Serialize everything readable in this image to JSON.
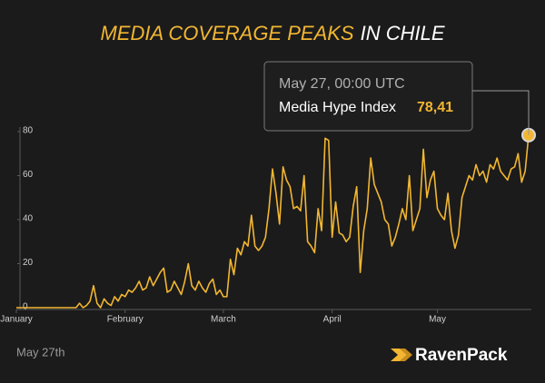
{
  "chart_data": {
    "type": "line",
    "title": {
      "highlight": "MEDIA COVERAGE PEAKS",
      "rest": "IN CHILE"
    },
    "color": "#f2b632",
    "categories": [
      "January",
      null,
      null,
      null,
      null,
      null,
      null,
      null,
      null,
      null,
      null,
      null,
      null,
      null,
      null,
      null,
      null,
      null,
      null,
      null,
      null,
      null,
      null,
      null,
      null,
      null,
      null,
      null,
      null,
      null,
      null,
      "February",
      null,
      null,
      null,
      null,
      null,
      null,
      null,
      null,
      null,
      null,
      null,
      null,
      null,
      null,
      null,
      null,
      null,
      null,
      null,
      null,
      null,
      null,
      null,
      null,
      null,
      null,
      null,
      "March",
      null,
      null,
      null,
      null,
      null,
      null,
      null,
      null,
      null,
      null,
      null,
      null,
      null,
      null,
      null,
      null,
      null,
      null,
      null,
      null,
      null,
      null,
      null,
      null,
      null,
      null,
      null,
      null,
      null,
      null,
      "April",
      null,
      null,
      null,
      null,
      null,
      null,
      null,
      null,
      null,
      null,
      null,
      null,
      null,
      null,
      null,
      null,
      null,
      null,
      null,
      null,
      null,
      null,
      null,
      null,
      null,
      null,
      null,
      null,
      null,
      "May",
      null,
      null,
      null,
      null,
      null,
      null,
      null,
      null,
      null,
      null,
      null,
      null,
      null,
      null,
      null,
      null,
      null,
      null,
      null,
      null,
      null,
      null,
      null,
      null,
      null,
      null
    ],
    "values": [
      0,
      0,
      0,
      0,
      0,
      0,
      0,
      0,
      0,
      0,
      0,
      0,
      0,
      0,
      0,
      0,
      0,
      0,
      2,
      0,
      1,
      3,
      10,
      2,
      0,
      4,
      2,
      1,
      5,
      3,
      6,
      5,
      8,
      7,
      9,
      12,
      8,
      9,
      14,
      10,
      13,
      16,
      18,
      7,
      8,
      12,
      9,
      6,
      12,
      20,
      10,
      8,
      12,
      9,
      7,
      11,
      13,
      6,
      8,
      5,
      5,
      22,
      15,
      27,
      24,
      30,
      28,
      42,
      28,
      26,
      28,
      32,
      45,
      63,
      52,
      38,
      64,
      58,
      55,
      45,
      46,
      44,
      60,
      30,
      28,
      25,
      45,
      35,
      77,
      76,
      32,
      48,
      34,
      33,
      30,
      32,
      46,
      55,
      16,
      35,
      45,
      68,
      56,
      52,
      48,
      40,
      38,
      28,
      32,
      38,
      45,
      40,
      60,
      35,
      40,
      45,
      72,
      50,
      58,
      62,
      45,
      42,
      40,
      52,
      35,
      27,
      33,
      50,
      55,
      60,
      58,
      65,
      60,
      62,
      57,
      65,
      63,
      68,
      62,
      60,
      58,
      63,
      64,
      70,
      57,
      62,
      78.41
    ],
    "ylim": [
      0,
      80
    ],
    "yticks": [
      0,
      20,
      40,
      60,
      80
    ],
    "tooltip": {
      "date": "May 27, 00:00 UTC",
      "label": "Media Hype Index",
      "value": 78.41,
      "value_label": "78,41"
    },
    "footer": "May 27th",
    "brand": "RavenPack"
  }
}
